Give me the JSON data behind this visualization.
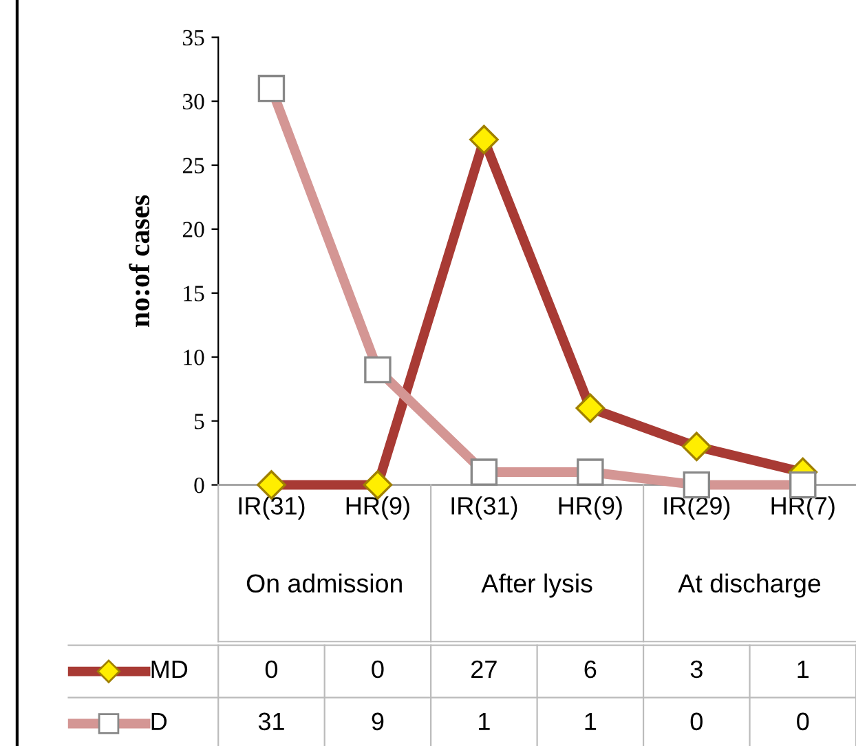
{
  "chart_data": {
    "type": "line",
    "ylabel": "no:of cases",
    "categories": [
      "IR(31)",
      "HR(9)",
      "IR(31)",
      "HR(9)",
      "IR(29)",
      "HR(7)"
    ],
    "annotations": [
      "On admission",
      "After lysis",
      "At discharge"
    ],
    "series": [
      {
        "name": "MD",
        "color": "#a83a34",
        "marker": "diamond",
        "values": [
          0,
          0,
          27,
          6,
          3,
          1
        ]
      },
      {
        "name": "D",
        "color": "#d49694",
        "marker": "square",
        "values": [
          31,
          9,
          1,
          1,
          0,
          0
        ]
      }
    ],
    "ylim": [
      0,
      35
    ],
    "yticks": [
      0,
      5,
      10,
      15,
      20,
      25,
      30,
      35
    ],
    "grid": false,
    "legend": "bottom",
    "data_labels": true
  }
}
